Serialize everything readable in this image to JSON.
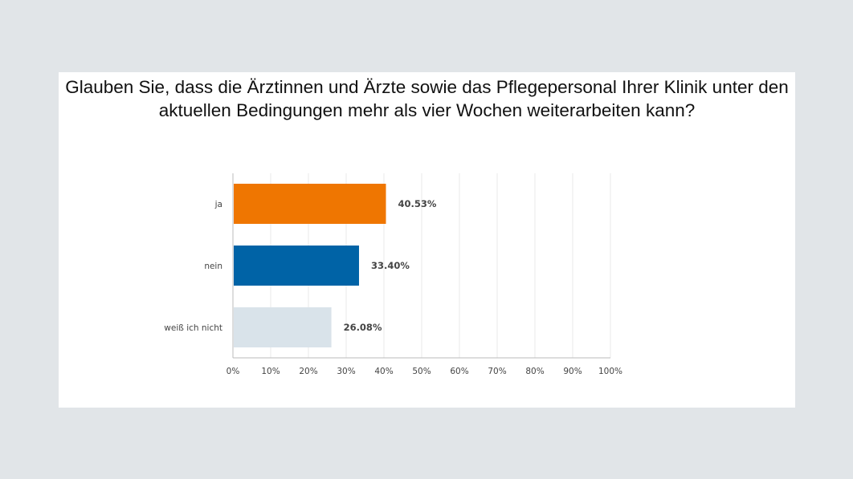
{
  "chart_data": {
    "type": "bar",
    "orientation": "horizontal",
    "title": "Glauben Sie, dass die Ärztinnen und Ärzte sowie das Pflegepersonal Ihrer Klinik unter den aktuellen Bedingungen mehr als vier Wochen weiterarbeiten kann?",
    "categories": [
      "ja",
      "nein",
      "weiß ich nicht"
    ],
    "values": [
      40.53,
      33.4,
      26.08
    ],
    "data_labels": [
      "40.53%",
      "33.40%",
      "26.08%"
    ],
    "colors": [
      "#ef7601",
      "#0063a6",
      "#d9e3ea"
    ],
    "xlim": [
      0,
      100
    ],
    "xticks": [
      "0%",
      "10%",
      "20%",
      "30%",
      "40%",
      "50%",
      "60%",
      "70%",
      "80%",
      "90%",
      "100%"
    ],
    "xlabel": "",
    "ylabel": "",
    "grid": true
  }
}
